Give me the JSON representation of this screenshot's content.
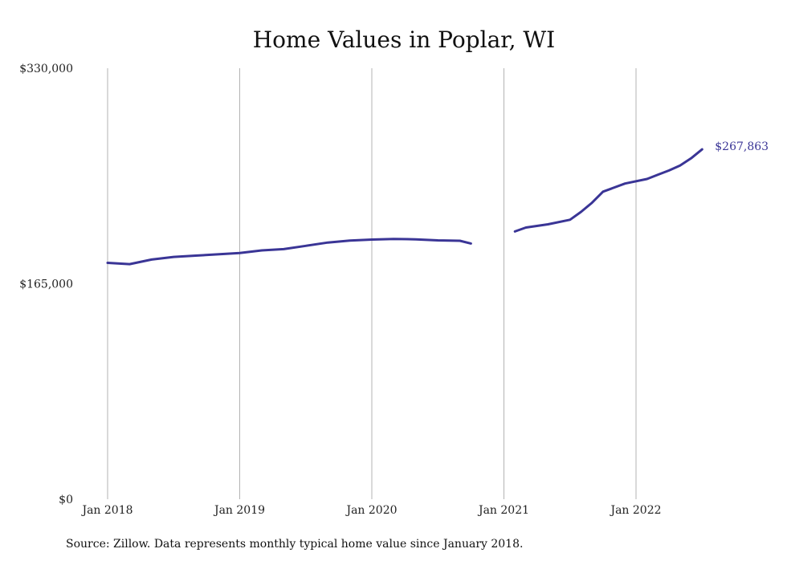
{
  "chart_data": {
    "type": "line",
    "title": "Home Values in Poplar, WI",
    "xlabel": "",
    "ylabel": "",
    "ylim": [
      0,
      330000
    ],
    "y_ticks": [
      {
        "value": 0,
        "label": "$0"
      },
      {
        "value": 165000,
        "label": "$165,000"
      },
      {
        "value": 330000,
        "label": "$330,000"
      }
    ],
    "x_ticks": [
      {
        "value": "2018-01",
        "label": "Jan 2018"
      },
      {
        "value": "2019-01",
        "label": "Jan 2019"
      },
      {
        "value": "2020-01",
        "label": "Jan 2020"
      },
      {
        "value": "2021-01",
        "label": "Jan 2021"
      },
      {
        "value": "2022-01",
        "label": "Jan 2022"
      }
    ],
    "grid": "vertical",
    "series": [
      {
        "color": "#3a3596",
        "segments": [
          {
            "x": [
              "2018-01",
              "2018-03",
              "2018-05",
              "2018-07",
              "2018-09",
              "2018-11",
              "2019-01",
              "2019-03",
              "2019-05",
              "2019-07",
              "2019-09",
              "2019-11",
              "2020-01",
              "2020-03",
              "2020-05",
              "2020-07",
              "2020-09",
              "2020-10"
            ],
            "y": [
              181000,
              180000,
              183500,
              185500,
              186500,
              187500,
              188500,
              190500,
              191500,
              194000,
              196500,
              198000,
              198800,
              199300,
              199000,
              198200,
              197900,
              195800
            ]
          },
          {
            "x": [
              "2021-02",
              "2021-03",
              "2021-05",
              "2021-07",
              "2021-08",
              "2021-09",
              "2021-10",
              "2021-12",
              "2022-02",
              "2022-03",
              "2022-04",
              "2022-05",
              "2022-06",
              "2022-07"
            ],
            "y": [
              205000,
              208000,
              210500,
              214000,
              220000,
              227000,
              235500,
              241700,
              245200,
              248500,
              251700,
              255500,
              261000,
              267863
            ]
          }
        ],
        "end_label": "$267,863"
      }
    ],
    "source": "Source: Zillow. Data represents monthly typical home value since January 2018."
  }
}
